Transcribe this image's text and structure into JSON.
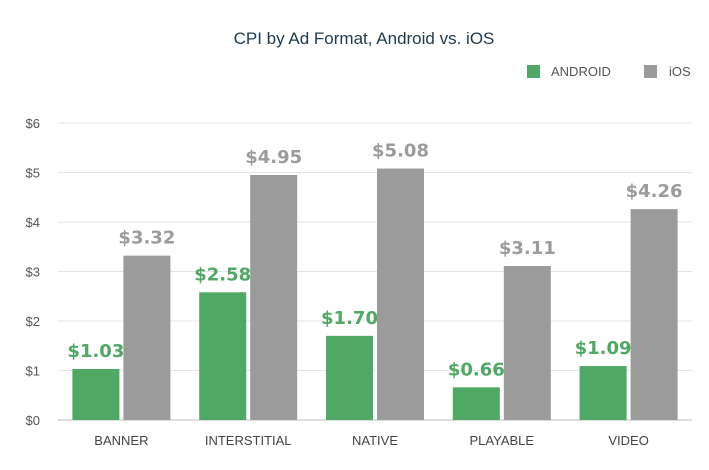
{
  "chart_data": {
    "type": "bar",
    "title": "CPI by Ad Format, Android vs. iOS",
    "categories": [
      "BANNER",
      "INTERSTITIAL",
      "NATIVE",
      "PLAYABLE",
      "VIDEO"
    ],
    "series": [
      {
        "name": "ANDROID",
        "color": "#4fa863",
        "values": [
          1.03,
          2.58,
          1.7,
          0.66,
          1.09
        ],
        "labels": [
          "$1.03",
          "$2.58",
          "$1.70",
          "$0.66",
          "$1.09"
        ]
      },
      {
        "name": "iOS",
        "color": "#9b9b9b",
        "values": [
          3.32,
          4.95,
          5.08,
          3.11,
          4.26
        ],
        "labels": [
          "$3.32",
          "$4.95",
          "$5.08",
          "$3.11",
          "$4.26"
        ]
      }
    ],
    "ylim": [
      0,
      6
    ],
    "y_ticks": [
      0,
      1,
      2,
      3,
      4,
      5,
      6
    ],
    "y_tick_labels": [
      "$0",
      "$1",
      "$2",
      "$3",
      "$4",
      "$5",
      "$6"
    ],
    "xlabel": "",
    "ylabel": "",
    "grid": true,
    "legend_position": "top-right"
  }
}
